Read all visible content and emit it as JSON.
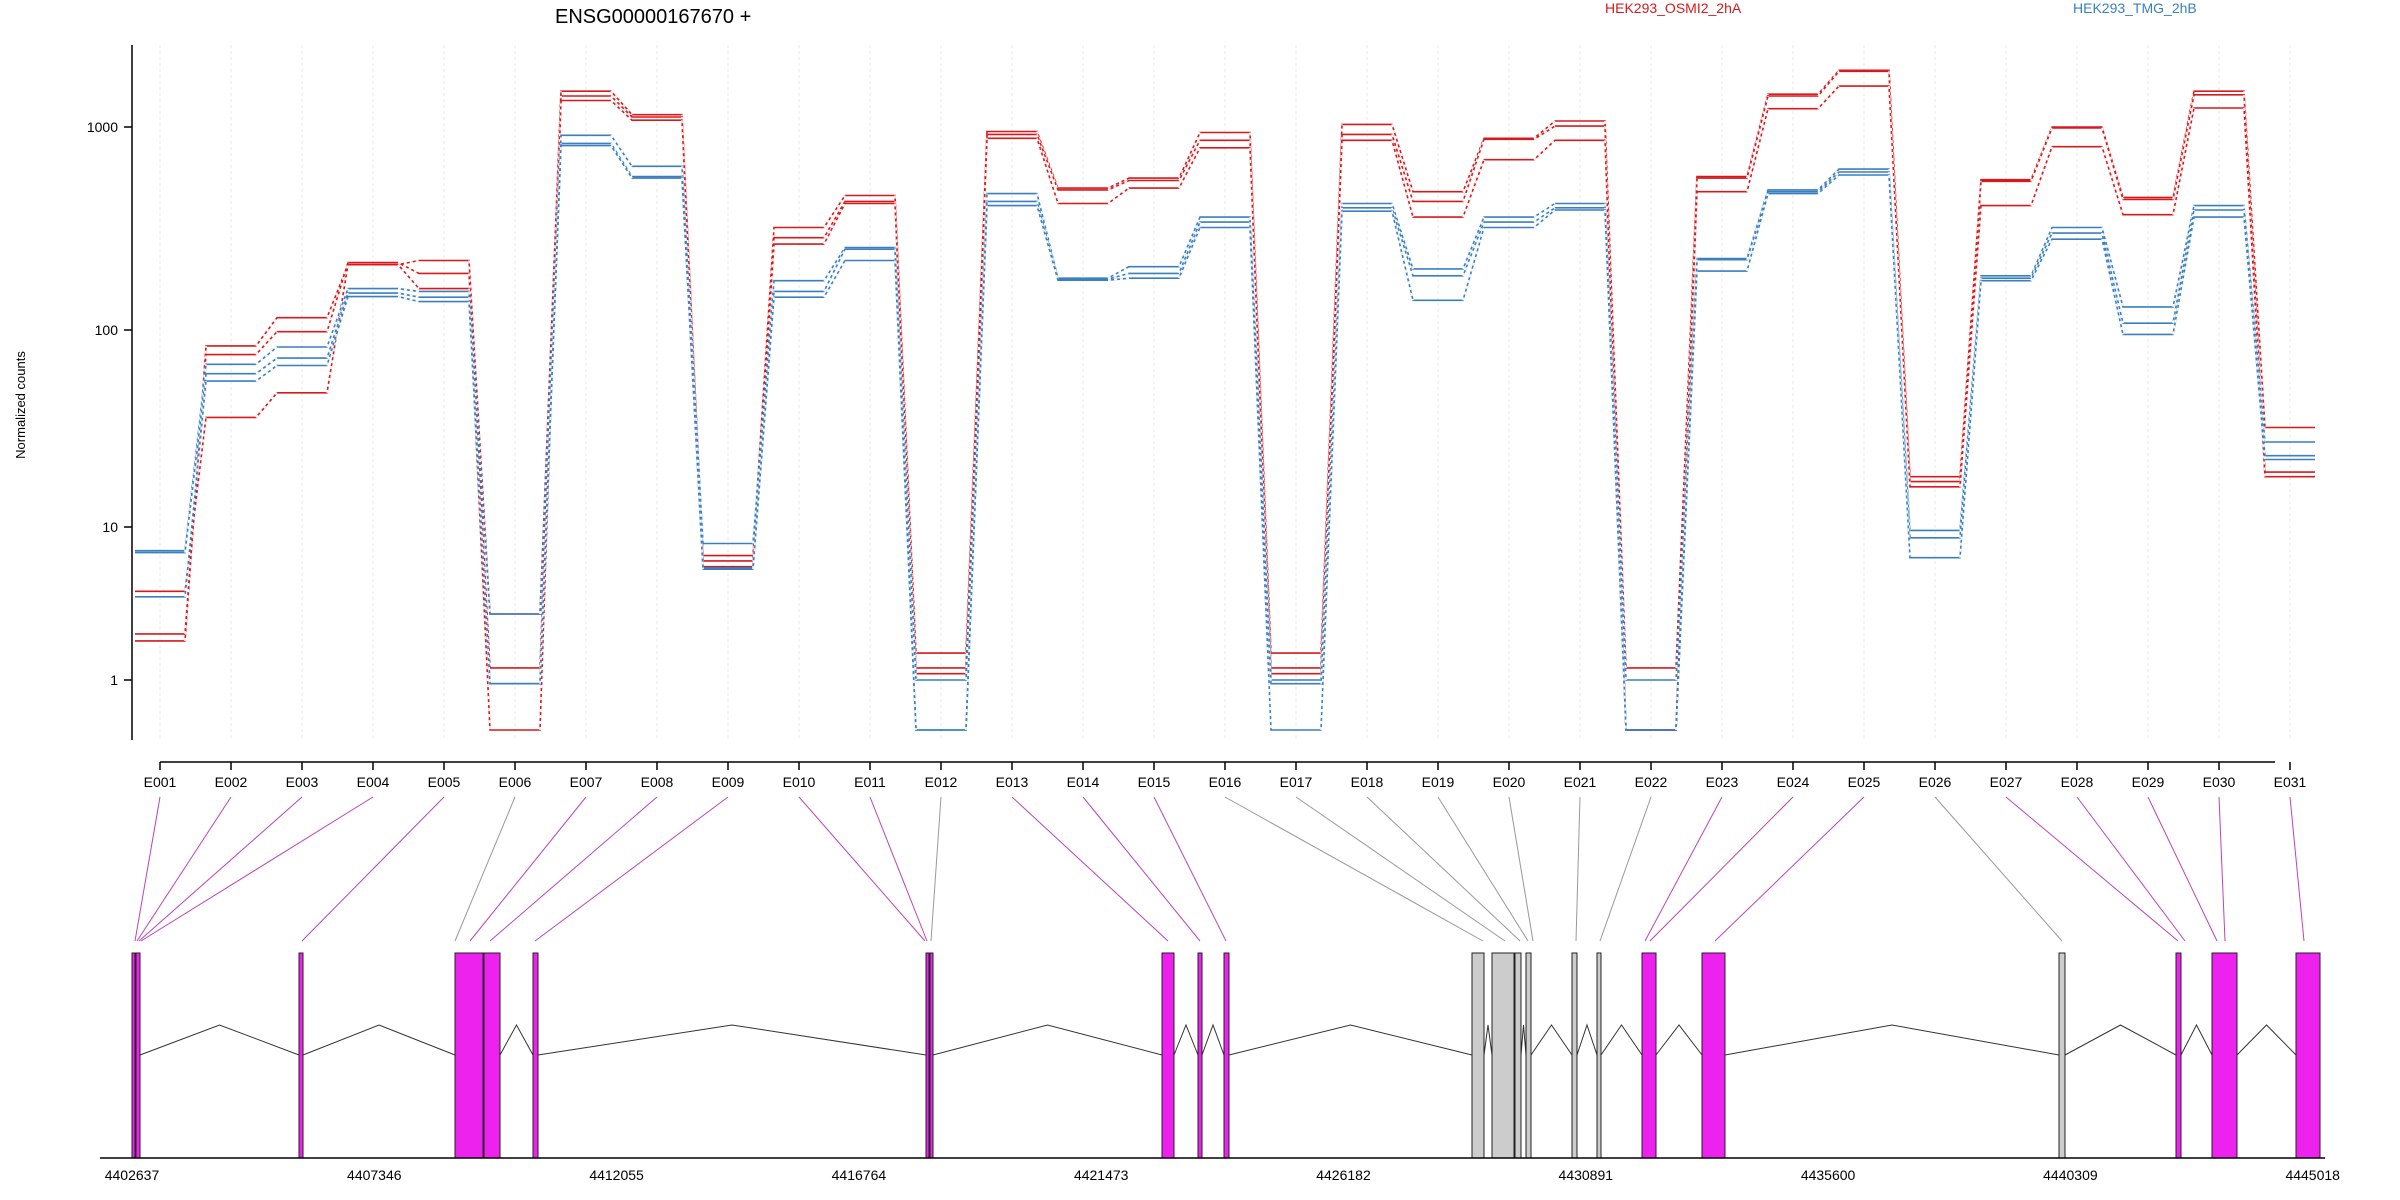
{
  "chart_data": {
    "type": "line",
    "title": "ENSG00000167670 +",
    "ylabel": "Normalized counts",
    "yscale": "log",
    "ylim": [
      0.5,
      2500
    ],
    "y_ticks": [
      1,
      10,
      100,
      1000
    ],
    "y_tick_labels": [
      "1",
      "10",
      "100",
      "1000"
    ],
    "grid": "vertical dotted lines at each exon",
    "legend": [
      "HEK293_OSMI2_2hA",
      "HEK293_TMG_2hB"
    ],
    "legend_colors": [
      "#d7191c",
      "#3a7fc0"
    ],
    "categories": [
      "E001",
      "E002",
      "E003",
      "E004",
      "E005",
      "E006",
      "E007",
      "E008",
      "E009",
      "E010",
      "E011",
      "E012",
      "E013",
      "E014",
      "E015",
      "E016",
      "E017",
      "E018",
      "E019",
      "E020",
      "E021",
      "E022",
      "E023",
      "E024",
      "E025",
      "E026",
      "E027",
      "E028",
      "E029",
      "E030",
      "E031"
    ],
    "series": [
      {
        "group": "HEK293_OSMI2_2hA",
        "values": [
          1.8,
          83,
          115,
          210,
          220,
          2.7,
          1500,
          1150,
          6.5,
          320,
          460,
          1.5,
          950,
          500,
          560,
          940,
          1.5,
          1030,
          480,
          880,
          1070,
          1.2,
          570,
          1450,
          1900,
          18,
          550,
          1000,
          450,
          1500,
          32
        ]
      },
      {
        "group": "HEK293_OSMI2_2hA",
        "values": [
          2.0,
          75,
          98,
          215,
          190,
          1.2,
          1420,
          1120,
          6.0,
          285,
          430,
          1.2,
          920,
          490,
          545,
          860,
          1.2,
          920,
          430,
          870,
          1010,
          0.5,
          560,
          1420,
          1880,
          17,
          540,
          990,
          440,
          1440,
          19
        ]
      },
      {
        "group": "HEK293_OSMI2_2hA",
        "values": [
          3.8,
          36,
          48,
          210,
          160,
          0.5,
          1350,
          1080,
          5.5,
          265,
          420,
          1.1,
          880,
          420,
          500,
          790,
          1.1,
          860,
          360,
          690,
          860,
          0.5,
          480,
          1230,
          1590,
          16,
          410,
          800,
          370,
          1240,
          18
        ]
      },
      {
        "group": "HEK293_TMG_2hB",
        "values": [
          7.0,
          67,
          82,
          160,
          155,
          2.7,
          910,
          640,
          7.8,
          175,
          255,
          1.0,
          470,
          180,
          205,
          360,
          1.0,
          420,
          200,
          360,
          420,
          1.0,
          225,
          490,
          620,
          9.5,
          185,
          320,
          130,
          410,
          27
        ]
      },
      {
        "group": "HEK293_TMG_2hB",
        "values": [
          6.8,
          60,
          72,
          152,
          145,
          0.95,
          830,
          570,
          5.4,
          155,
          250,
          0.5,
          430,
          178,
          190,
          340,
          0.95,
          400,
          185,
          340,
          400,
          0.5,
          222,
          480,
          600,
          8.5,
          180,
          300,
          108,
          390,
          23
        ]
      },
      {
        "group": "HEK293_TMG_2hB",
        "values": [
          3.5,
          55,
          66,
          146,
          138,
          0.95,
          810,
          560,
          5.3,
          145,
          220,
          0.5,
          410,
          176,
          180,
          320,
          0.5,
          385,
          140,
          320,
          390,
          0.5,
          195,
          470,
          580,
          6.3,
          175,
          280,
          95,
          360,
          22
        ]
      }
    ],
    "gene_axis_ticks": [
      "4402637",
      "4407346",
      "4412055",
      "4416764",
      "4421473",
      "4426182",
      "4430891",
      "4435600",
      "4440309",
      "4445018"
    ],
    "exon_colors": {
      "significant": "#ee22ee",
      "other": "#cccccc"
    }
  }
}
